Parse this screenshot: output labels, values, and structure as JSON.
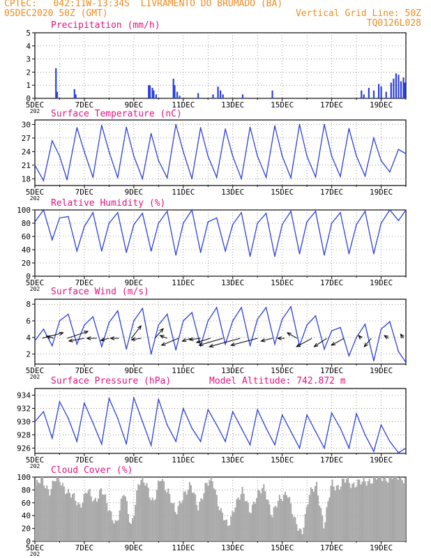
{
  "header": {
    "line1": "CPTEC:   042:11W-13:34S  LIVRAMENTO DO BRUMADO (BA)",
    "line2_left": "05DEC2020 50Z (GMT)",
    "line2_right": "Vertical Grid Line: 50Z",
    "line3_right": "TQ0126L028"
  },
  "colors": {
    "header": "#f08a1e",
    "title": "#e8117f",
    "line": "#2b3fdc",
    "bar": "#2b3fdc",
    "cloud": "#a8a8a8",
    "axis": "#000000"
  },
  "x_ticks": [
    "5DEC",
    "7DEC",
    "9DEC",
    "11DEC",
    "13DEC",
    "15DEC",
    "17DEC",
    "19DEC"
  ],
  "year_fragment": "202",
  "chart_data": [
    {
      "id": "precip",
      "type": "bar",
      "title": "Precipitation (mm/h)",
      "ylim": [
        0,
        5
      ],
      "yticks": [
        0,
        1,
        2,
        3,
        4,
        5
      ],
      "xlim": [
        0,
        15
      ],
      "x": [
        0.85,
        0.9,
        1.6,
        1.65,
        4.6,
        4.65,
        4.75,
        4.8,
        4.9,
        5.6,
        5.65,
        5.75,
        5.85,
        6.6,
        7.2,
        7.4,
        7.5,
        7.6,
        8.4,
        9.6,
        13.2,
        13.3,
        13.5,
        13.7,
        13.9,
        14.0,
        14.2,
        14.4,
        14.5,
        14.6,
        14.7,
        14.8,
        14.9,
        14.95
      ],
      "values": [
        2.3,
        0.5,
        0.7,
        0.3,
        1.0,
        1.0,
        0.8,
        0.6,
        0.3,
        1.5,
        1.0,
        0.5,
        0.2,
        0.4,
        0.3,
        0.9,
        0.6,
        0.3,
        0.3,
        0.6,
        0.6,
        0.3,
        0.8,
        0.6,
        1.1,
        0.9,
        0.5,
        1.2,
        1.5,
        1.9,
        1.8,
        1.3,
        1.6,
        1.2
      ]
    },
    {
      "id": "temp",
      "type": "line",
      "title": "Surface Temperature (nC)",
      "ylim": [
        16.5,
        31
      ],
      "yticks": [
        18,
        21,
        24,
        27,
        30
      ],
      "xlim": [
        0,
        15
      ],
      "x": [
        0,
        0.35,
        0.7,
        1.0,
        1.3,
        1.7,
        2.0,
        2.35,
        2.7,
        3.0,
        3.35,
        3.7,
        4.0,
        4.35,
        4.7,
        5.0,
        5.35,
        5.7,
        6.0,
        6.35,
        6.7,
        7.0,
        7.35,
        7.7,
        8.0,
        8.35,
        8.7,
        9.0,
        9.35,
        9.7,
        10.0,
        10.35,
        10.7,
        11.0,
        11.35,
        11.7,
        12.0,
        12.35,
        12.7,
        13.0,
        13.35,
        13.7,
        14.0,
        14.35,
        14.7,
        15.0
      ],
      "values": [
        21,
        17.6,
        26.4,
        23,
        17.8,
        29.3,
        24,
        18.3,
        29.8,
        24,
        18.2,
        29.4,
        23,
        18.0,
        28.0,
        22,
        18.2,
        30.0,
        24,
        18.0,
        29.3,
        23,
        18.3,
        29.0,
        23,
        18.0,
        29.4,
        23,
        18.3,
        29.7,
        23,
        18.2,
        30.0,
        23,
        18.4,
        30.0,
        23,
        18.5,
        29.1,
        23,
        18.6,
        27.0,
        22,
        19.5,
        24.5,
        23.5
      ]
    },
    {
      "id": "rh",
      "type": "line",
      "title": "Relative Humidity (%)",
      "ylim": [
        0,
        100
      ],
      "yticks": [
        0,
        20,
        40,
        60,
        80,
        100
      ],
      "xlim": [
        0,
        15
      ],
      "x": [
        0,
        0.35,
        0.7,
        1.0,
        1.35,
        1.7,
        2.0,
        2.35,
        2.7,
        3.0,
        3.35,
        3.7,
        4.0,
        4.35,
        4.7,
        5.0,
        5.35,
        5.7,
        6.0,
        6.35,
        6.7,
        7.0,
        7.35,
        7.7,
        8.0,
        8.35,
        8.7,
        9.0,
        9.35,
        9.7,
        10.0,
        10.35,
        10.7,
        11.0,
        11.35,
        11.7,
        12.0,
        12.35,
        12.7,
        13.0,
        13.35,
        13.7,
        14.0,
        14.35,
        14.7,
        15.0
      ],
      "values": [
        82,
        100,
        55,
        88,
        90,
        38,
        75,
        96,
        38,
        80,
        96,
        36,
        78,
        95,
        38,
        80,
        98,
        32,
        80,
        100,
        36,
        82,
        88,
        38,
        78,
        96,
        30,
        80,
        95,
        30,
        78,
        98,
        34,
        82,
        98,
        32,
        80,
        96,
        34,
        78,
        98,
        34,
        80,
        100,
        84,
        100
      ]
    },
    {
      "id": "wind",
      "type": "line",
      "title": "Surface Wind (m/s)",
      "ylim": [
        0.8,
        8.6
      ],
      "yticks": [
        2,
        4,
        6,
        8
      ],
      "xlim": [
        0,
        15
      ],
      "x": [
        0,
        0.35,
        0.7,
        1.0,
        1.35,
        1.7,
        2.0,
        2.35,
        2.7,
        3.0,
        3.35,
        3.7,
        4.0,
        4.35,
        4.7,
        5.0,
        5.35,
        5.7,
        6.0,
        6.35,
        6.7,
        7.0,
        7.35,
        7.7,
        8.0,
        8.35,
        8.7,
        9.0,
        9.35,
        9.7,
        10.0,
        10.35,
        10.7,
        11.0,
        11.35,
        11.7,
        12.0,
        12.35,
        12.7,
        13.0,
        13.35,
        13.7,
        14.0,
        14.35,
        14.7,
        15.0
      ],
      "values": [
        3.6,
        5.0,
        3.0,
        6.0,
        6.8,
        3.2,
        5.5,
        6.5,
        2.9,
        5.8,
        7.2,
        2.6,
        6.0,
        7.5,
        2.0,
        5.5,
        6.8,
        2.5,
        6.0,
        7.0,
        3.0,
        6.0,
        7.6,
        3.2,
        6.0,
        7.6,
        3.0,
        6.2,
        7.6,
        3.2,
        6.2,
        7.7,
        3.0,
        5.5,
        6.6,
        2.6,
        4.8,
        5.2,
        1.8,
        4.0,
        5.6,
        1.2,
        5.0,
        5.9,
        2.3,
        1.0
      ],
      "arrows": [
        {
          "x": 0.3,
          "dx": 30,
          "dy": -8
        },
        {
          "x": 0.75,
          "dx": -10,
          "dy": -3
        },
        {
          "x": 1.3,
          "dx": 30,
          "dy": -10
        },
        {
          "x": 2.0,
          "dx": -22,
          "dy": 4
        },
        {
          "x": 2.5,
          "dx": -14,
          "dy": 0
        },
        {
          "x": 3.0,
          "dx": -12,
          "dy": 3
        },
        {
          "x": 3.4,
          "dx": -12,
          "dy": 0
        },
        {
          "x": 3.9,
          "dx": 14,
          "dy": -18
        },
        {
          "x": 4.3,
          "dx": -14,
          "dy": 2
        },
        {
          "x": 4.85,
          "dx": 12,
          "dy": -14
        },
        {
          "x": 5.35,
          "dx": -10,
          "dy": -4
        },
        {
          "x": 5.8,
          "dx": -24,
          "dy": 10
        },
        {
          "x": 6.3,
          "dx": -12,
          "dy": 4
        },
        {
          "x": 6.7,
          "dx": -16,
          "dy": 2
        },
        {
          "x": 7.1,
          "dx": -20,
          "dy": 6
        },
        {
          "x": 7.6,
          "dx": -34,
          "dy": 10
        },
        {
          "x": 8.3,
          "dx": -44,
          "dy": 12
        },
        {
          "x": 9.0,
          "dx": -38,
          "dy": 10
        },
        {
          "x": 9.6,
          "dx": -16,
          "dy": 4
        },
        {
          "x": 10.1,
          "dx": -10,
          "dy": 0
        },
        {
          "x": 10.6,
          "dx": -14,
          "dy": -8
        },
        {
          "x": 11.2,
          "dx": -22,
          "dy": 12
        },
        {
          "x": 11.8,
          "dx": -18,
          "dy": 12
        },
        {
          "x": 12.5,
          "dx": -18,
          "dy": 10
        },
        {
          "x": 13.2,
          "dx": -4,
          "dy": -4
        },
        {
          "x": 13.6,
          "dx": -10,
          "dy": 12
        },
        {
          "x": 14.3,
          "dx": -6,
          "dy": -4
        },
        {
          "x": 14.9,
          "dx": -4,
          "dy": -6
        }
      ]
    },
    {
      "id": "pres",
      "type": "line",
      "title": "Surface Pressure (hPa)",
      "annotation": "Model Altitude: 742.872 m",
      "ylim": [
        925.2,
        935
      ],
      "yticks": [
        926,
        928,
        930,
        932,
        934
      ],
      "xlim": [
        0,
        15
      ],
      "x": [
        0,
        0.35,
        0.7,
        1.0,
        1.35,
        1.7,
        2.0,
        2.35,
        2.7,
        3.0,
        3.35,
        3.7,
        4.0,
        4.35,
        4.7,
        5.0,
        5.35,
        5.7,
        6.0,
        6.35,
        6.7,
        7.0,
        7.35,
        7.7,
        8.0,
        8.35,
        8.7,
        9.0,
        9.35,
        9.7,
        10.0,
        10.35,
        10.7,
        11.0,
        11.35,
        11.7,
        12.0,
        12.35,
        12.7,
        13.0,
        13.35,
        13.7,
        14.0,
        14.35,
        14.7,
        15.0
      ],
      "values": [
        930.0,
        931.5,
        927.5,
        933.0,
        930.5,
        927.0,
        932.8,
        929.8,
        926.6,
        933.5,
        930.5,
        926.6,
        933.6,
        930.0,
        926.4,
        933.4,
        929.5,
        927.0,
        932.0,
        929.0,
        927.0,
        931.8,
        929.5,
        927.0,
        931.5,
        929.0,
        926.5,
        931.8,
        929.0,
        926.5,
        931.0,
        928.5,
        926.0,
        931.0,
        928.5,
        926.0,
        931.3,
        929.0,
        926.0,
        931.2,
        928.0,
        925.5,
        929.5,
        927.0,
        925.3,
        926.0
      ]
    },
    {
      "id": "cloud",
      "type": "area",
      "title": "Cloud Cover (%)",
      "ylim": [
        0,
        100
      ],
      "yticks": [
        0,
        20,
        40,
        60,
        80,
        100
      ],
      "xlim": [
        0,
        15
      ],
      "x": [
        0,
        0.3,
        0.6,
        0.9,
        1.2,
        1.5,
        1.8,
        2.1,
        2.4,
        2.7,
        3.0,
        3.3,
        3.6,
        3.9,
        4.2,
        4.5,
        4.8,
        5.1,
        5.4,
        5.7,
        6.0,
        6.3,
        6.6,
        6.9,
        7.2,
        7.5,
        7.8,
        8.1,
        8.4,
        8.7,
        9.0,
        9.3,
        9.6,
        9.9,
        10.2,
        10.5,
        10.8,
        11.1,
        11.4,
        11.7,
        12.0,
        12.3,
        12.6,
        12.9,
        13.2,
        13.5,
        13.8,
        14.1,
        14.4,
        14.7,
        15.0
      ],
      "values": [
        85,
        95,
        80,
        100,
        85,
        70,
        55,
        80,
        60,
        85,
        45,
        30,
        75,
        25,
        90,
        92,
        60,
        98,
        80,
        40,
        75,
        85,
        55,
        85,
        95,
        50,
        20,
        60,
        75,
        50,
        70,
        85,
        40,
        65,
        80,
        30,
        15,
        70,
        90,
        20,
        92,
        85,
        95,
        90,
        90,
        96,
        98,
        100,
        100,
        100,
        100
      ]
    }
  ]
}
